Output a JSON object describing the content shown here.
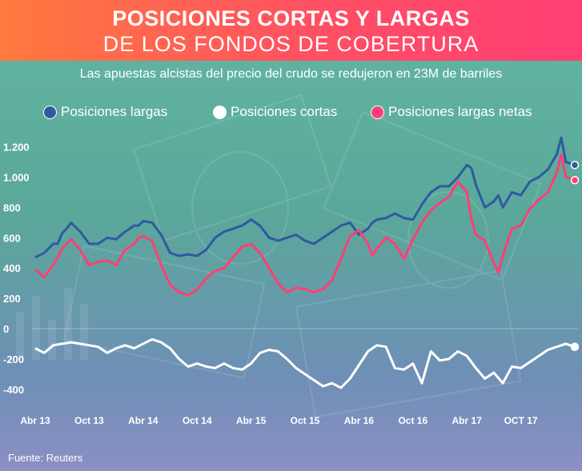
{
  "title_line1": "POSICIONES CORTAS Y LARGAS",
  "title_line2": "DE LOS FONDOS DE COBERTURA",
  "subtitle": "Las apuestas alcistas del precio del crudo se redujeron en 23M de barriles",
  "source": "Fuente: Reuters",
  "colors": {
    "long": "#2f5aa0",
    "short": "#ffffff",
    "net": "#ff3f74",
    "header": "#ff4f64"
  },
  "legend": [
    {
      "label": "Posiciones largas",
      "color": "#2f5aa0"
    },
    {
      "label": "Posiciones cortas",
      "color": "#ffffff"
    },
    {
      "label": "Posiciones largas netas",
      "color": "#ff3f74"
    }
  ],
  "chart_data": {
    "type": "line",
    "title": "Posiciones cortas y largas de los fondos de cobertura",
    "ylim": [
      -400,
      1300
    ],
    "y_ticks": [
      {
        "value": 1200,
        "label": "1.200"
      },
      {
        "value": 1000,
        "label": "1.000"
      },
      {
        "value": 800,
        "label": "800"
      },
      {
        "value": 600,
        "label": "600"
      },
      {
        "value": 400,
        "label": "400"
      },
      {
        "value": 200,
        "label": "200"
      },
      {
        "value": 0,
        "label": "0"
      },
      {
        "value": -200,
        "label": "-200"
      },
      {
        "value": -400,
        "label": "-400"
      }
    ],
    "x_range": [
      0,
      60
    ],
    "x_ticks": [
      {
        "month": 0,
        "label": "Abr 13"
      },
      {
        "month": 6,
        "label": "Oct 13"
      },
      {
        "month": 12,
        "label": "Abr 14"
      },
      {
        "month": 18,
        "label": "Oct 14"
      },
      {
        "month": 24,
        "label": "Abr 15"
      },
      {
        "month": 30,
        "label": "Oct 15"
      },
      {
        "month": 36,
        "label": "Abr 16"
      },
      {
        "month": 42,
        "label": "Oct 16"
      },
      {
        "month": 48,
        "label": "Abr 17"
      },
      {
        "month": 54,
        "label": "OCT 17"
      }
    ],
    "series": [
      {
        "name": "Posiciones largas",
        "x": [
          0,
          1,
          2,
          2.5,
          3,
          3.5,
          4,
          5,
          6,
          7,
          8,
          9,
          10,
          11,
          11.5,
          12,
          13,
          14,
          15,
          16,
          17,
          18,
          19,
          20,
          21,
          22,
          23,
          24,
          25,
          26,
          27,
          28,
          29,
          30,
          31,
          32,
          33,
          34,
          35,
          36,
          37,
          37.5,
          38,
          39,
          40,
          41,
          42,
          43,
          44,
          45,
          46,
          47,
          48,
          48.5,
          49,
          50,
          51,
          51.5,
          52,
          53,
          54,
          55,
          56,
          57,
          58,
          58.5,
          59,
          60
        ],
        "values": [
          470,
          500,
          560,
          560,
          630,
          660,
          700,
          640,
          560,
          560,
          600,
          590,
          640,
          680,
          680,
          710,
          700,
          620,
          500,
          480,
          490,
          480,
          520,
          600,
          640,
          660,
          680,
          720,
          680,
          600,
          580,
          600,
          620,
          580,
          560,
          600,
          640,
          680,
          700,
          620,
          660,
          700,
          720,
          730,
          760,
          730,
          720,
          820,
          900,
          940,
          940,
          1000,
          1080,
          1060,
          950,
          800,
          840,
          880,
          800,
          900,
          880,
          970,
          1000,
          1050,
          1150,
          1260,
          1100,
          1080
        ]
      },
      {
        "name": "Posiciones cortas",
        "x": [
          0,
          1,
          2,
          3,
          4,
          5,
          6,
          7,
          8,
          9,
          10,
          11,
          12,
          13,
          14,
          15,
          16,
          17,
          18,
          19,
          20,
          21,
          22,
          23,
          24,
          25,
          26,
          27,
          28,
          29,
          30,
          31,
          32,
          33,
          34,
          35,
          36,
          37,
          38,
          39,
          40,
          41,
          42,
          43,
          44,
          45,
          46,
          47,
          48,
          49,
          50,
          51,
          52,
          53,
          54,
          55,
          56,
          57,
          58,
          59,
          60
        ],
        "values": [
          -130,
          -160,
          -110,
          -100,
          -90,
          -100,
          -110,
          -120,
          -160,
          -130,
          -110,
          -130,
          -100,
          -70,
          -90,
          -130,
          -200,
          -250,
          -230,
          -250,
          -260,
          -230,
          -260,
          -270,
          -230,
          -160,
          -140,
          -150,
          -200,
          -260,
          -300,
          -340,
          -380,
          -360,
          -390,
          -330,
          -240,
          -150,
          -110,
          -120,
          -260,
          -270,
          -230,
          -360,
          -150,
          -210,
          -200,
          -150,
          -180,
          -260,
          -330,
          -290,
          -360,
          -250,
          -260,
          -220,
          -180,
          -140,
          -120,
          -100,
          -120
        ]
      },
      {
        "name": "Posiciones largas netas",
        "x": [
          0,
          1,
          2,
          2.5,
          3,
          3.5,
          4,
          5,
          6,
          7,
          8,
          9,
          10,
          11,
          11.5,
          12,
          13,
          14,
          15,
          16,
          17,
          18,
          19,
          20,
          21,
          22,
          23,
          24,
          25,
          26,
          27,
          28,
          29,
          30,
          31,
          32,
          33,
          34,
          35,
          36,
          37,
          37.5,
          38,
          39,
          40,
          41,
          42,
          43,
          44,
          45,
          46,
          47,
          48,
          48.5,
          49,
          50,
          51,
          51.5,
          52,
          53,
          54,
          55,
          56,
          57,
          58,
          58.5,
          59,
          60
        ],
        "values": [
          390,
          340,
          420,
          470,
          530,
          560,
          590,
          520,
          420,
          440,
          450,
          420,
          520,
          560,
          600,
          610,
          580,
          420,
          290,
          240,
          220,
          260,
          330,
          380,
          400,
          470,
          540,
          560,
          500,
          400,
          300,
          240,
          270,
          260,
          240,
          260,
          320,
          460,
          610,
          650,
          560,
          480,
          530,
          600,
          560,
          460,
          590,
          700,
          780,
          830,
          870,
          970,
          900,
          720,
          620,
          580,
          430,
          370,
          480,
          660,
          680,
          790,
          850,
          900,
          1030,
          1150,
          1000,
          980
        ]
      }
    ]
  }
}
